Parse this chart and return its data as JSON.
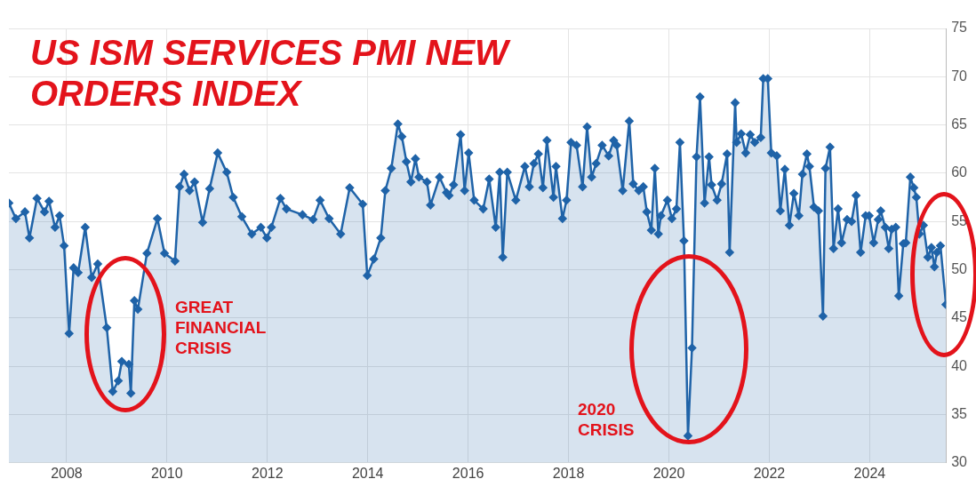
{
  "chart_data": {
    "type": "area",
    "title": "US ISM SERVICES PMI NEW ORDERS INDEX",
    "annotations": [
      "GREAT FINANCIAL CRISIS",
      "2020 CRISIS"
    ],
    "series": [
      {
        "color": "#1f63a8",
        "x": [
          2006.85,
          2006.99,
          2007.17,
          2007.26,
          2007.41,
          2007.56,
          2007.65,
          2007.77,
          2007.86,
          2007.95,
          2008.05,
          2008.14,
          2008.23,
          2008.37,
          2008.5,
          2008.62,
          2008.8,
          2008.92,
          2009.03,
          2009.1,
          2009.24,
          2009.28,
          2009.35,
          2009.42,
          2009.6,
          2009.81,
          2009.95,
          2010.16,
          2010.25,
          2010.34,
          2010.45,
          2010.55,
          2010.71,
          2010.85,
          2011.01,
          2011.19,
          2011.32,
          2011.49,
          2011.69,
          2011.87,
          2011.99,
          2012.08,
          2012.26,
          2012.38,
          2012.7,
          2012.91,
          2013.05,
          2013.23,
          2013.46,
          2013.64,
          2013.9,
          2013.99,
          2014.12,
          2014.26,
          2014.35,
          2014.47,
          2014.6,
          2014.68,
          2014.77,
          2014.86,
          2014.95,
          2015.02,
          2015.18,
          2015.25,
          2015.43,
          2015.57,
          2015.62,
          2015.71,
          2015.85,
          2015.93,
          2016.01,
          2016.12,
          2016.3,
          2016.42,
          2016.55,
          2016.63,
          2016.69,
          2016.78,
          2016.95,
          2017.13,
          2017.22,
          2017.31,
          2017.4,
          2017.49,
          2017.57,
          2017.7,
          2017.75,
          2017.88,
          2017.96,
          2018.05,
          2018.16,
          2018.28,
          2018.37,
          2018.46,
          2018.55,
          2018.67,
          2018.8,
          2018.9,
          2018.96,
          2019.08,
          2019.21,
          2019.29,
          2019.4,
          2019.49,
          2019.56,
          2019.65,
          2019.72,
          2019.79,
          2019.84,
          2019.97,
          2020.06,
          2020.15,
          2020.22,
          2020.3,
          2020.38,
          2020.46,
          2020.55,
          2020.62,
          2020.71,
          2020.8,
          2020.85,
          2020.96,
          2021.05,
          2021.16,
          2021.21,
          2021.32,
          2021.35,
          2021.44,
          2021.53,
          2021.62,
          2021.71,
          2021.83,
          2021.88,
          2021.97,
          2022.04,
          2022.15,
          2022.22,
          2022.31,
          2022.4,
          2022.49,
          2022.59,
          2022.66,
          2022.75,
          2022.8,
          2022.89,
          2022.98,
          2023.07,
          2023.12,
          2023.21,
          2023.28,
          2023.37,
          2023.44,
          2023.55,
          2023.64,
          2023.73,
          2023.82,
          2023.92,
          2023.99,
          2024.08,
          2024.17,
          2024.22,
          2024.31,
          2024.38,
          2024.44,
          2024.52,
          2024.58,
          2024.67,
          2024.72,
          2024.81,
          2024.88,
          2024.93,
          2024.99,
          2025.07,
          2025.16,
          2025.23,
          2025.29,
          2025.34,
          2025.41,
          2025.52
        ],
        "values": [
          56.9,
          55.3,
          56,
          53.3,
          57.4,
          56,
          57.1,
          54.4,
          55.6,
          52.5,
          43.4,
          50.2,
          49.7,
          54.4,
          49.2,
          50.6,
          44,
          37.4,
          38.5,
          40.5,
          40.2,
          37.2,
          46.8,
          45.9,
          51.7,
          55.3,
          51.7,
          50.9,
          58.6,
          59.9,
          58.2,
          59.1,
          54.9,
          58.4,
          62.1,
          60.1,
          57.5,
          55.5,
          53.7,
          54.4,
          53.3,
          54.4,
          57.4,
          56.3,
          55.7,
          55.2,
          57.2,
          55.3,
          53.7,
          58.5,
          56.8,
          49.4,
          51.1,
          53.3,
          58.2,
          60.5,
          65.1,
          63.8,
          61.2,
          59.1,
          61.5,
          59.6,
          59.1,
          56.7,
          59.6,
          58,
          57.7,
          58.8,
          64,
          58.2,
          62.1,
          57.2,
          56.3,
          59.4,
          54.4,
          60.1,
          51.3,
          60.1,
          57.2,
          60.7,
          58.6,
          61,
          62,
          58.5,
          63.4,
          57.5,
          60.7,
          55.3,
          57.2,
          63.2,
          62.9,
          58.6,
          64.8,
          59.6,
          61,
          62.9,
          61.8,
          63.4,
          62.9,
          58.2,
          65.4,
          58.9,
          58.2,
          58.6,
          56,
          54.1,
          60.5,
          53.7,
          55.6,
          57.2,
          55.3,
          56.3,
          63.2,
          53,
          32.8,
          41.9,
          61.7,
          67.9,
          56.9,
          61.7,
          58.8,
          57.2,
          58.9,
          62,
          51.8,
          67.3,
          63.2,
          64.1,
          62.1,
          64,
          63.2,
          63.7,
          69.8,
          69.8,
          62.1,
          61.8,
          56.1,
          60.4,
          54.6,
          57.9,
          55.6,
          59.9,
          62,
          60.7,
          56.5,
          56.1,
          45.2,
          60.5,
          62.7,
          52.2,
          56.3,
          52.8,
          55.2,
          55,
          57.7,
          51.8,
          55.6,
          55.6,
          52.8,
          55.2,
          56.1,
          54.4,
          52.2,
          54.2,
          54.4,
          47.3,
          52.7,
          52.8,
          59.6,
          58.5,
          57.5,
          53.7,
          54.6,
          51.3,
          52.3,
          50.3,
          51.8,
          52.5,
          46.4
        ]
      }
    ],
    "xlim": [
      2006.85,
      2025.52
    ],
    "xticks": [
      2008,
      2010,
      2012,
      2014,
      2016,
      2018,
      2020,
      2022,
      2024
    ],
    "ylim": [
      30,
      75
    ],
    "yticks": [
      30,
      35,
      40,
      45,
      50,
      55,
      60,
      65,
      70,
      75
    ],
    "grid": true,
    "marker": "diamond",
    "line_style": "solid"
  }
}
